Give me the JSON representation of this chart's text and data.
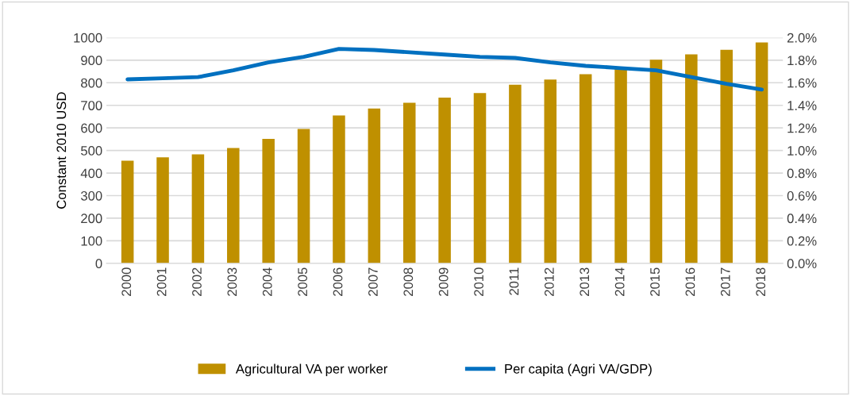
{
  "chart_data": {
    "type": "bar",
    "ylabel": "Constant 2010 USD",
    "categories": [
      "2000",
      "2001",
      "2002",
      "2003",
      "2004",
      "2005",
      "2006",
      "2007",
      "2008",
      "2009",
      "2010",
      "2011",
      "2012",
      "2013",
      "2014",
      "2015",
      "2016",
      "2017",
      "2018"
    ],
    "series": [
      {
        "name": "Agricultural VA per worker",
        "color": "#bf9000",
        "values": [
          455,
          470,
          483,
          511,
          551,
          595,
          655,
          686,
          711,
          734,
          754,
          791,
          814,
          838,
          863,
          902,
          926,
          946,
          979
        ]
      },
      {
        "name": "Per capita (Agri VA/GDP)",
        "type": "line",
        "axis": "y2",
        "color": "#0070c0",
        "values": [
          1.63,
          1.64,
          1.65,
          1.71,
          1.78,
          1.83,
          1.9,
          1.89,
          1.87,
          1.85,
          1.83,
          1.82,
          1.78,
          1.75,
          1.73,
          1.71,
          1.65,
          1.59,
          1.54
        ]
      }
    ],
    "ylim": [
      0,
      1000
    ],
    "yticks": [
      0,
      100,
      200,
      300,
      400,
      500,
      600,
      700,
      800,
      900,
      1000
    ],
    "y2lim": [
      0,
      2.0
    ],
    "y2ticks": [
      {
        "value": 0,
        "label": "0.0%"
      },
      {
        "value": 0.2,
        "label": "0.2%"
      },
      {
        "value": 0.4,
        "label": "0.4%"
      },
      {
        "value": 0.6,
        "label": "0.6%"
      },
      {
        "value": 0.8,
        "label": "0.8%"
      },
      {
        "value": 1.0,
        "label": "1.0%"
      },
      {
        "value": 1.2,
        "label": "1.2%"
      },
      {
        "value": 1.4,
        "label": "1.4%"
      },
      {
        "value": 1.6,
        "label": "1.6%"
      },
      {
        "value": 1.8,
        "label": "1.8%"
      },
      {
        "value": 2.0,
        "label": "2.0%"
      }
    ],
    "grid": "y",
    "legend": "bottom"
  }
}
